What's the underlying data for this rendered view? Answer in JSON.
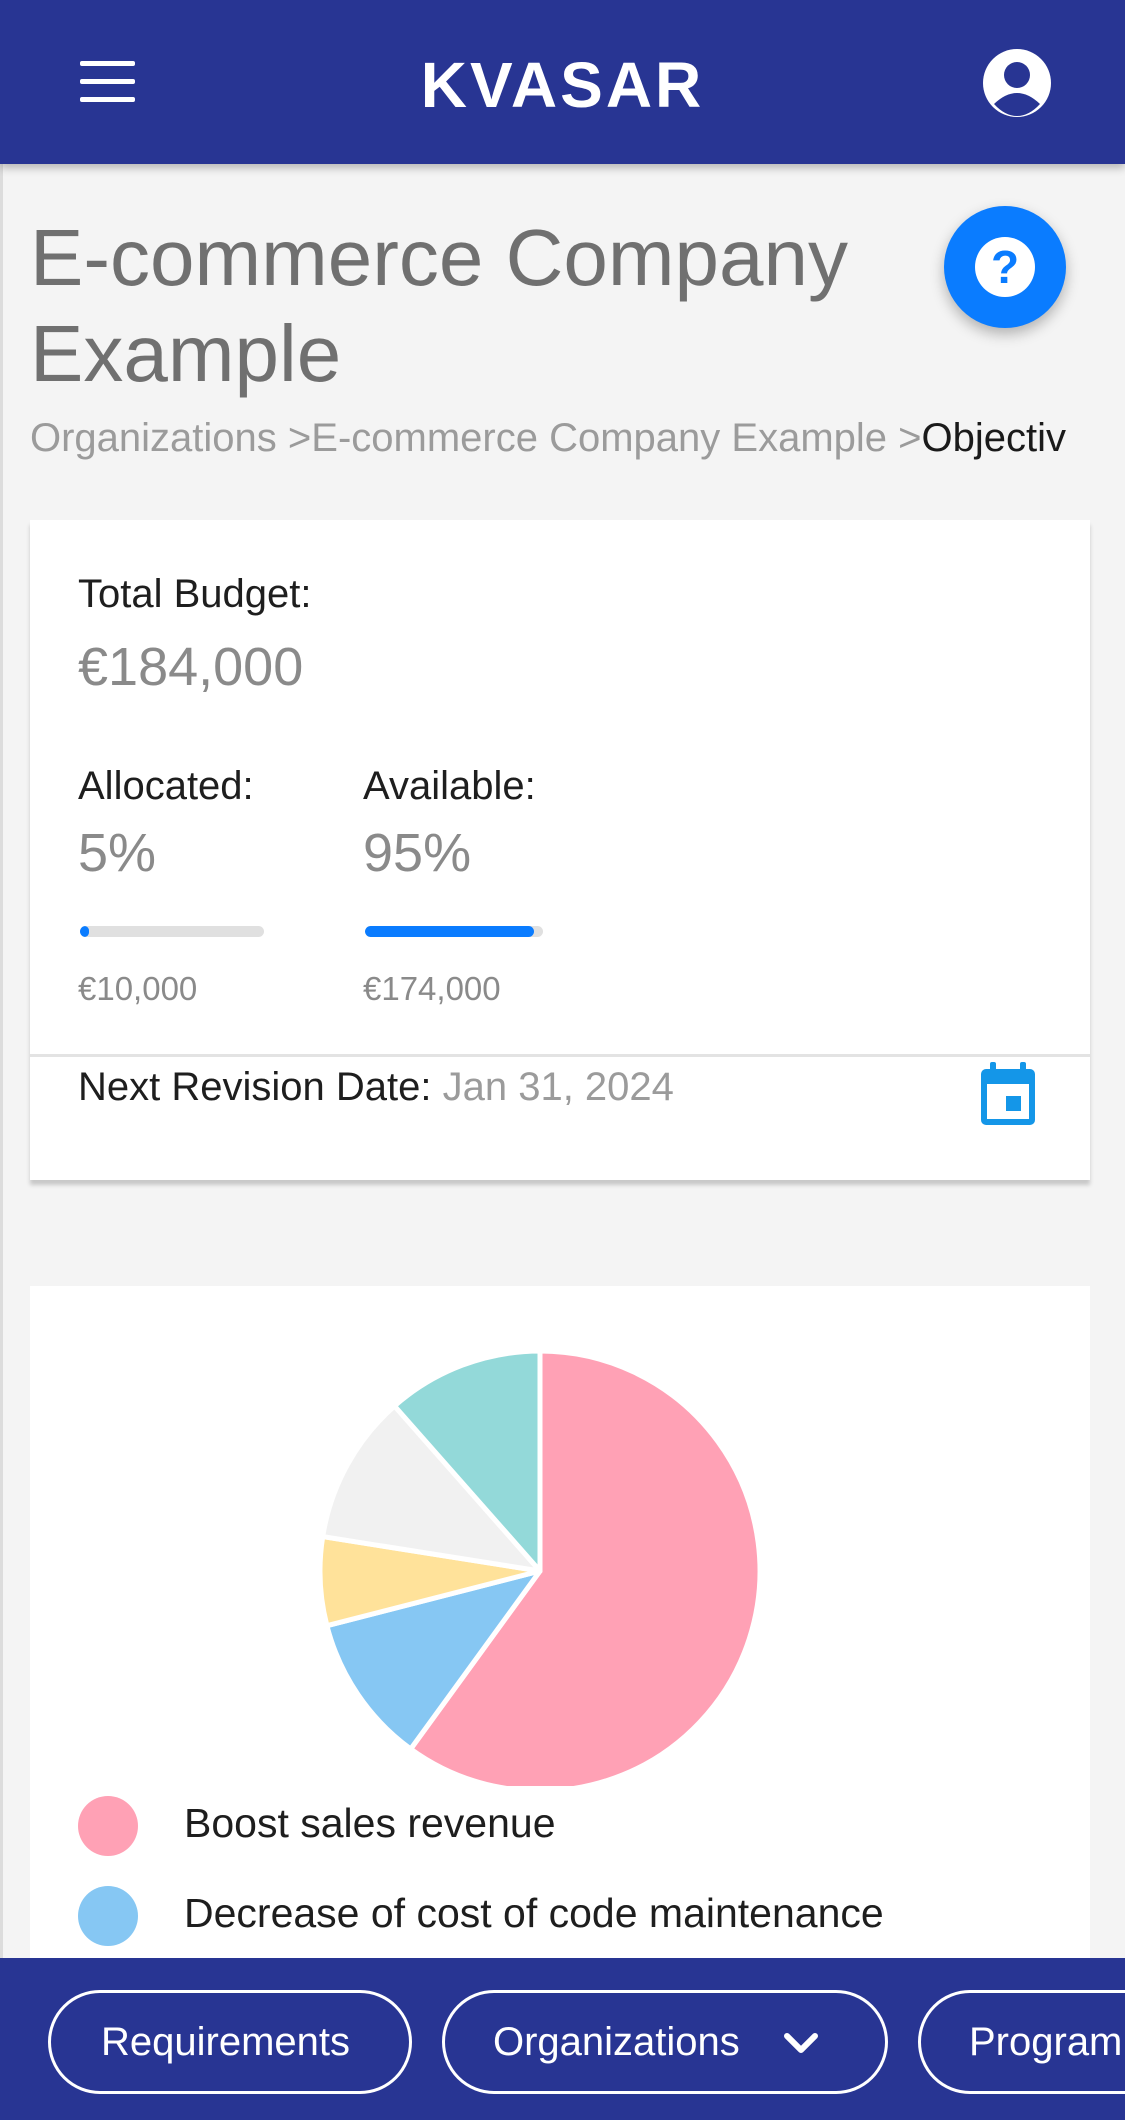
{
  "header": {
    "title": "KVASAR",
    "menu_icon": "menu-icon",
    "user_icon": "account-circle-icon"
  },
  "page": {
    "title": "E-commerce Company Example",
    "help_icon": "help-icon",
    "breadcrumb": [
      {
        "label": "Organizations >"
      },
      {
        "label": "E-commerce Company Example >"
      },
      {
        "label": "Objectiv"
      }
    ]
  },
  "budget": {
    "total_label": "Total Budget:",
    "total_value": "€184,000",
    "allocated": {
      "label": "Allocated:",
      "percent_text": "5%",
      "amount": "€10,000",
      "fill_percent": 5
    },
    "available": {
      "label": "Available:",
      "percent_text": "95%",
      "amount": "€174,000",
      "fill_percent": 95
    },
    "revision_label": "Next Revision Date:",
    "revision_date": "Jan 31, 2024",
    "calendar_icon": "calendar-icon"
  },
  "chart_data": {
    "type": "pie",
    "title": "",
    "slices": [
      {
        "label": "Boost sales revenue",
        "value": 60,
        "color": "#ffa1b5"
      },
      {
        "label": "Decrease of cost of code maintenance",
        "value": 11,
        "color": "#86c7f3"
      },
      {
        "label": "",
        "value": 6.5,
        "color": "#ffe29a"
      },
      {
        "label": "",
        "value": 11,
        "color": "#f1f1f1"
      },
      {
        "label": "",
        "value": 11.5,
        "color": "#93d9d9"
      }
    ],
    "legend_position": "bottom",
    "visible_legend_items": 2
  },
  "bottom_nav": [
    {
      "label": "Requirements",
      "has_dropdown": false
    },
    {
      "label": "Organizations",
      "has_dropdown": true,
      "dropdown_icon": "chevron-down-icon"
    },
    {
      "label": "Program"
    }
  ],
  "colors": {
    "primary": "#283593",
    "accent": "#0a7cff",
    "background": "#f4f4f4"
  }
}
